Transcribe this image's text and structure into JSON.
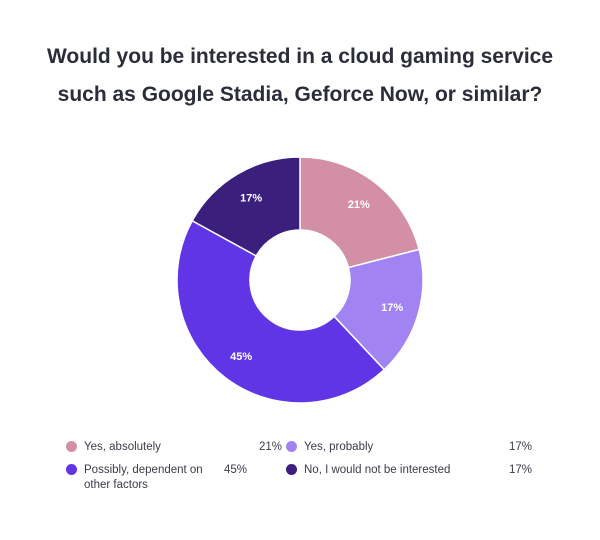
{
  "chart_data": {
    "type": "pie",
    "title": "Would you be interested in a cloud gaming service such as Google Stadia, Geforce Now, or similar?",
    "categories": [
      "Yes, absolutely",
      "Yes, probably",
      "Possibly, dependent on other factors",
      "No, I would not be interested"
    ],
    "values": [
      21,
      17,
      45,
      17
    ],
    "value_labels": [
      "21%",
      "17%",
      "45%",
      "17%"
    ],
    "colors": [
      "#d28fa5",
      "#a184f2",
      "#5f35e6",
      "#3a1f7d"
    ],
    "donut": true,
    "legend": "bottom"
  },
  "legend": [
    {
      "label": "Yes, absolutely",
      "value": "21%",
      "color": "#d28fa5"
    },
    {
      "label": "Yes, probably",
      "value": "17%",
      "color": "#a184f2"
    },
    {
      "label": "Possibly, dependent on other factors",
      "value": "45%",
      "color": "#5f35e6"
    },
    {
      "label": "No, I would not be interested",
      "value": "17%",
      "color": "#3a1f7d"
    }
  ]
}
